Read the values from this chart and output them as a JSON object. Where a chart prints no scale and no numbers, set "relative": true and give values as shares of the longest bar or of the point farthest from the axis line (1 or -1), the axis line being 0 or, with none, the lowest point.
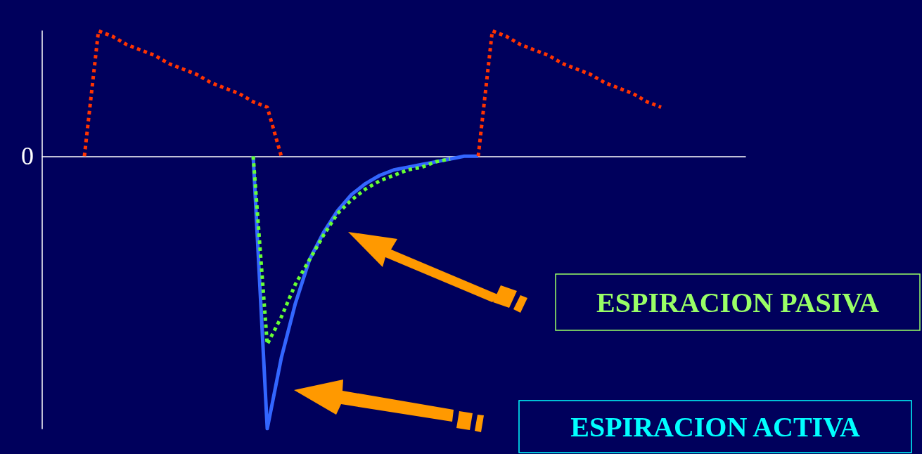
{
  "chart_data": {
    "type": "line",
    "relative": true,
    "grid": false,
    "marker": "none",
    "categories": [
      null,
      null,
      null,
      null,
      null,
      null,
      null,
      null,
      null,
      null,
      null,
      null,
      null,
      null,
      null,
      null,
      null,
      null,
      null,
      null,
      null,
      null,
      null,
      null,
      null,
      null,
      null,
      null,
      null,
      null,
      null,
      null,
      null,
      null,
      null,
      null,
      null,
      null,
      null,
      null,
      null,
      null,
      null,
      null,
      null,
      null,
      null,
      null,
      null,
      null,
      null
    ],
    "annotations": [
      "0",
      "ESPIRACION PASIVA",
      "ESPIRACION ACTIVA"
    ],
    "series": [
      {
        "color": "#ff3300",
        "line_style": "dotted",
        "values": [
          null,
          null,
          null,
          0,
          0.46,
          0.44,
          0.41,
          0.39,
          0.37,
          0.34,
          0.32,
          0.3,
          0.27,
          0.25,
          0.23,
          0.2,
          0.18,
          0,
          null,
          null,
          null,
          null,
          null,
          null,
          null,
          null,
          null,
          null,
          null,
          null,
          null,
          0,
          0.46,
          0.44,
          0.41,
          0.39,
          0.37,
          0.34,
          0.32,
          0.3,
          0.27,
          0.25,
          0.23,
          0.2,
          0.18,
          null,
          null,
          null,
          null,
          null,
          null
        ]
      },
      {
        "color": "#66ff33",
        "line_style": "dotted",
        "values": [
          null,
          null,
          null,
          null,
          null,
          null,
          null,
          null,
          null,
          null,
          null,
          null,
          null,
          null,
          null,
          0,
          -0.69,
          -0.59,
          -0.47,
          -0.38,
          -0.29,
          -0.21,
          -0.16,
          -0.12,
          -0.09,
          -0.07,
          -0.05,
          -0.04,
          -0.02,
          -0.01,
          null,
          null,
          null,
          null,
          null,
          null,
          null,
          null,
          null,
          null,
          null,
          null,
          null,
          null,
          null,
          null,
          null,
          null,
          null,
          null,
          null
        ]
      },
      {
        "color": "#3366ff",
        "line_style": "solid",
        "values": [
          null,
          null,
          null,
          null,
          null,
          null,
          null,
          null,
          null,
          null,
          null,
          null,
          null,
          null,
          null,
          0,
          -1,
          -0.74,
          -0.54,
          -0.38,
          -0.28,
          -0.2,
          -0.14,
          -0.1,
          -0.07,
          -0.05,
          -0.04,
          -0.03,
          -0.02,
          -0.01,
          0,
          0,
          null,
          null,
          null,
          null,
          null,
          null,
          null,
          null,
          null,
          null,
          null,
          null,
          null,
          null,
          null,
          null,
          null,
          null,
          null
        ]
      }
    ]
  }
}
